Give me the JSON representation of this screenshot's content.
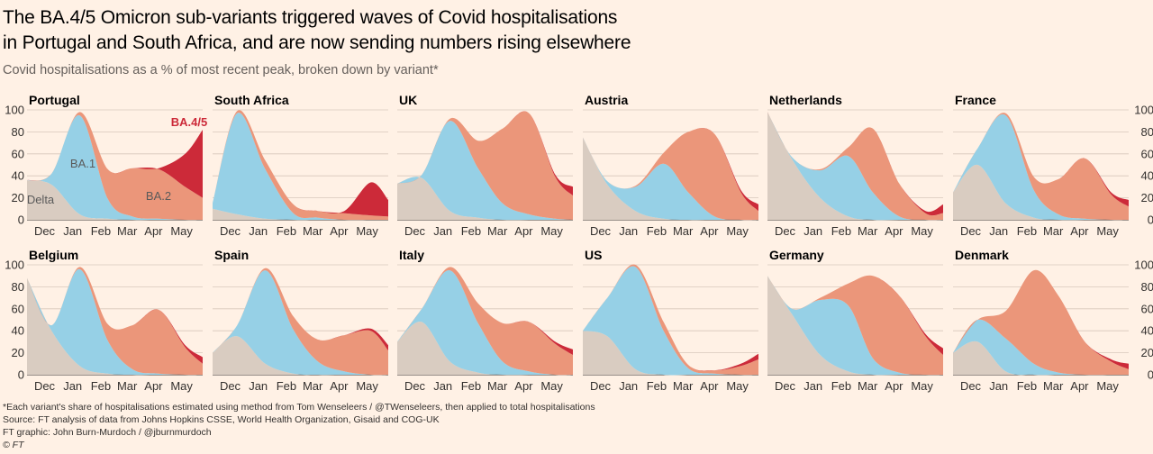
{
  "header": {
    "title_line1": "The BA.4/5 Omicron sub-variants triggered waves of Covid hospitalisations",
    "title_line2": "in Portugal and South Africa, and are now sending numbers rising elsewhere",
    "subtitle": "Covid hospitalisations as a % of most recent peak, broken down by variant*"
  },
  "footer": {
    "note": "*Each variant's share of hospitalisations estimated using method from Tom Wenseleers / @TWenseleers, then applied to total hospitalisations",
    "source": "Source: FT analysis of data from Johns Hopkins CSSE, World Health Organization, Gisaid and COG-UK",
    "credit": "FT graphic: John Burn-Murdoch / @jburnmurdoch",
    "copyright": "© FT"
  },
  "colors": {
    "delta": "#d9ccc1",
    "ba1": "#96d0e6",
    "ba2": "#eb967a",
    "ba45": "#cc2a39",
    "grid": "#d8c8bb",
    "axis": "#33302e"
  },
  "chart_data": {
    "type": "area",
    "stacking": "stacked",
    "ylim": [
      0,
      100
    ],
    "y_ticks": [
      0,
      20,
      40,
      60,
      80,
      100
    ],
    "x_ticks": [
      "Dec",
      "Jan",
      "Feb",
      "Mar",
      "Apr",
      "May"
    ],
    "x_range": [
      "Nov",
      "May"
    ],
    "series_names": [
      "Delta",
      "BA.1",
      "BA.2",
      "BA.4/5"
    ],
    "panels": [
      {
        "name": "Portugal",
        "x": [
          "mid-Nov",
          "Dec",
          "Jan",
          "Feb",
          "Mar",
          "Apr",
          "May",
          "end-May"
        ],
        "series": [
          {
            "name": "Delta",
            "values": [
              36,
              32,
              5,
              1,
              0,
              0,
              0,
              0
            ]
          },
          {
            "name": "BA.1",
            "values": [
              0,
              10,
              90,
              18,
              3,
              1,
              0,
              0
            ]
          },
          {
            "name": "BA.2",
            "values": [
              0,
              0,
              3,
              27,
              44,
              45,
              30,
              20
            ]
          },
          {
            "name": "BA.4/5",
            "values": [
              0,
              0,
              0,
              0,
              0,
              1,
              30,
              62
            ]
          }
        ]
      },
      {
        "name": "South Africa",
        "x": [
          "mid-Nov",
          "Dec",
          "Jan",
          "Feb",
          "Mar",
          "Apr",
          "May",
          "end-May"
        ],
        "series": [
          {
            "name": "Delta",
            "values": [
              10,
              5,
              1,
              0,
              0,
              0,
              0,
              0
            ]
          },
          {
            "name": "BA.1",
            "values": [
              5,
              92,
              45,
              6,
              2,
              0,
              0,
              0
            ]
          },
          {
            "name": "BA.2",
            "values": [
              0,
              2,
              8,
              8,
              6,
              6,
              4,
              3
            ]
          },
          {
            "name": "BA.4/5",
            "values": [
              0,
              0,
              0,
              0,
              0,
              2,
              30,
              15
            ]
          }
        ]
      },
      {
        "name": "UK",
        "x": [
          "mid-Nov",
          "Dec",
          "Jan",
          "Feb",
          "Mar",
          "Apr",
          "May",
          "end-May"
        ],
        "series": [
          {
            "name": "Delta",
            "values": [
              33,
              38,
              8,
              2,
              0,
              0,
              0,
              0
            ]
          },
          {
            "name": "BA.1",
            "values": [
              0,
              3,
              82,
              45,
              15,
              5,
              1,
              0
            ]
          },
          {
            "name": "BA.2",
            "values": [
              0,
              0,
              2,
              25,
              68,
              92,
              38,
              22
            ]
          },
          {
            "name": "BA.4/5",
            "values": [
              0,
              0,
              0,
              0,
              0,
              0,
              2,
              8
            ]
          }
        ]
      },
      {
        "name": "Austria",
        "x": [
          "mid-Nov",
          "Dec",
          "Jan",
          "Feb",
          "Mar",
          "Apr",
          "May",
          "end-May"
        ],
        "series": [
          {
            "name": "Delta",
            "values": [
              75,
              32,
              8,
              1,
              0,
              0,
              0,
              0
            ]
          },
          {
            "name": "BA.1",
            "values": [
              0,
              3,
              22,
              50,
              25,
              3,
              0,
              0
            ]
          },
          {
            "name": "BA.2",
            "values": [
              0,
              0,
              1,
              10,
              55,
              75,
              25,
              8
            ]
          },
          {
            "name": "BA.4/5",
            "values": [
              0,
              0,
              0,
              0,
              0,
              0,
              2,
              6
            ]
          }
        ]
      },
      {
        "name": "Netherlands",
        "x": [
          "mid-Nov",
          "Dec",
          "Jan",
          "Feb",
          "Mar",
          "Apr",
          "May",
          "end-May"
        ],
        "series": [
          {
            "name": "Delta",
            "values": [
              98,
              55,
              20,
              3,
              0,
              0,
              0,
              0
            ]
          },
          {
            "name": "BA.1",
            "values": [
              0,
              2,
              25,
              55,
              25,
              3,
              0,
              0
            ]
          },
          {
            "name": "BA.2",
            "values": [
              0,
              0,
              1,
              8,
              58,
              30,
              6,
              6
            ]
          },
          {
            "name": "BA.4/5",
            "values": [
              0,
              0,
              0,
              0,
              0,
              0,
              2,
              8
            ]
          }
        ]
      },
      {
        "name": "France",
        "x": [
          "mid-Nov",
          "Dec",
          "Jan",
          "Feb",
          "Mar",
          "Apr",
          "May",
          "end-May"
        ],
        "series": [
          {
            "name": "Delta",
            "values": [
              25,
              50,
              15,
              2,
              0,
              0,
              0,
              0
            ]
          },
          {
            "name": "BA.1",
            "values": [
              0,
              15,
              80,
              25,
              5,
              1,
              0,
              0
            ]
          },
          {
            "name": "BA.2",
            "values": [
              0,
              0,
              2,
              12,
              32,
              55,
              23,
              12
            ]
          },
          {
            "name": "BA.4/5",
            "values": [
              0,
              0,
              0,
              0,
              0,
              0,
              2,
              6
            ]
          }
        ]
      },
      {
        "name": "Belgium",
        "x": [
          "mid-Nov",
          "Dec",
          "Jan",
          "Feb",
          "Mar",
          "Apr",
          "May",
          "end-May"
        ],
        "series": [
          {
            "name": "Delta",
            "values": [
              88,
              40,
              8,
              1,
              0,
              0,
              0,
              0
            ]
          },
          {
            "name": "BA.1",
            "values": [
              0,
              5,
              88,
              30,
              5,
              1,
              0,
              0
            ]
          },
          {
            "name": "BA.2",
            "values": [
              0,
              0,
              2,
              15,
              40,
              58,
              25,
              10
            ]
          },
          {
            "name": "BA.4/5",
            "values": [
              0,
              0,
              0,
              0,
              0,
              0,
              2,
              6
            ]
          }
        ]
      },
      {
        "name": "Spain",
        "x": [
          "mid-Nov",
          "Dec",
          "Jan",
          "Feb",
          "Mar",
          "Apr",
          "May",
          "end-May"
        ],
        "series": [
          {
            "name": "Delta",
            "values": [
              20,
              35,
              10,
              1,
              0,
              0,
              0,
              0
            ]
          },
          {
            "name": "BA.1",
            "values": [
              0,
              10,
              85,
              40,
              12,
              3,
              0,
              0
            ]
          },
          {
            "name": "BA.2",
            "values": [
              0,
              0,
              2,
              12,
              20,
              33,
              40,
              22
            ]
          },
          {
            "name": "BA.4/5",
            "values": [
              0,
              0,
              0,
              0,
              0,
              0,
              2,
              5
            ]
          }
        ]
      },
      {
        "name": "Italy",
        "x": [
          "mid-Nov",
          "Dec",
          "Jan",
          "Feb",
          "Mar",
          "Apr",
          "May",
          "end-May"
        ],
        "series": [
          {
            "name": "Delta",
            "values": [
              30,
              48,
              12,
              2,
              0,
              0,
              0,
              0
            ]
          },
          {
            "name": "BA.1",
            "values": [
              0,
              12,
              83,
              45,
              12,
              3,
              0,
              0
            ]
          },
          {
            "name": "BA.2",
            "values": [
              0,
              0,
              3,
              18,
              35,
              45,
              28,
              18
            ]
          },
          {
            "name": "BA.4/5",
            "values": [
              0,
              0,
              0,
              0,
              0,
              0,
              2,
              5
            ]
          }
        ]
      },
      {
        "name": "US",
        "x": [
          "mid-Nov",
          "Dec",
          "Jan",
          "Feb",
          "Mar",
          "Apr",
          "May",
          "end-May"
        ],
        "series": [
          {
            "name": "Delta",
            "values": [
              40,
              35,
              5,
              0,
              0,
              0,
              0,
              0
            ]
          },
          {
            "name": "BA.1",
            "values": [
              0,
              35,
              93,
              40,
              6,
              1,
              0,
              0
            ]
          },
          {
            "name": "BA.2",
            "values": [
              0,
              0,
              2,
              8,
              3,
              3,
              8,
              14
            ]
          },
          {
            "name": "BA.4/5",
            "values": [
              0,
              0,
              0,
              0,
              0,
              0,
              2,
              5
            ]
          }
        ]
      },
      {
        "name": "Germany",
        "x": [
          "mid-Nov",
          "Dec",
          "Jan",
          "Feb",
          "Mar",
          "Apr",
          "May",
          "end-May"
        ],
        "series": [
          {
            "name": "Delta",
            "values": [
              90,
              55,
              18,
              3,
              0,
              0,
              0,
              0
            ]
          },
          {
            "name": "BA.1",
            "values": [
              0,
              5,
              50,
              60,
              15,
              2,
              0,
              0
            ]
          },
          {
            "name": "BA.2",
            "values": [
              0,
              0,
              2,
              20,
              75,
              70,
              35,
              18
            ]
          },
          {
            "name": "BA.4/5",
            "values": [
              0,
              0,
              0,
              0,
              0,
              0,
              2,
              6
            ]
          }
        ]
      },
      {
        "name": "Denmark",
        "x": [
          "mid-Nov",
          "Dec",
          "Jan",
          "Feb",
          "Mar",
          "Apr",
          "May",
          "end-May"
        ],
        "series": [
          {
            "name": "Delta",
            "values": [
              20,
              30,
              3,
              0,
              0,
              0,
              0,
              0
            ]
          },
          {
            "name": "BA.1",
            "values": [
              0,
              20,
              30,
              10,
              2,
              0,
              0,
              0
            ]
          },
          {
            "name": "BA.2",
            "values": [
              0,
              0,
              25,
              85,
              70,
              30,
              12,
              5
            ]
          },
          {
            "name": "BA.4/5",
            "values": [
              0,
              0,
              0,
              0,
              0,
              0,
              2,
              5
            ]
          }
        ]
      }
    ],
    "annotations": [
      {
        "panel": "Portugal",
        "text": "BA.4/5"
      },
      {
        "panel": "Portugal",
        "text": "BA.1"
      },
      {
        "panel": "Portugal",
        "text": "BA.2"
      },
      {
        "panel": "Portugal",
        "text": "Delta"
      }
    ]
  }
}
